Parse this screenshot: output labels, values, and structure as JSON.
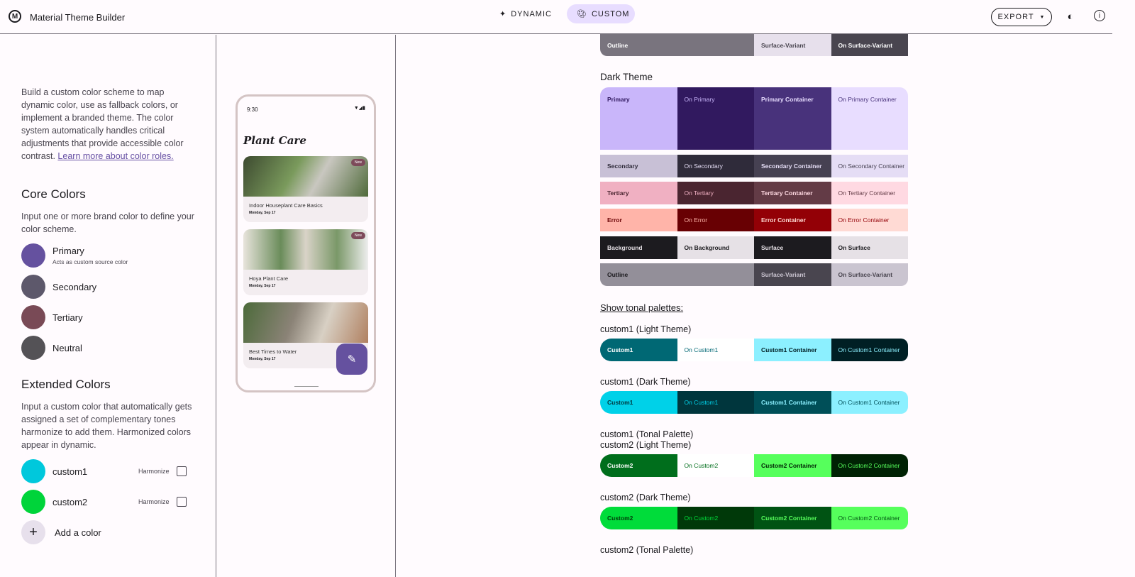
{
  "header": {
    "title": "Material Theme Builder",
    "logo": "M",
    "dynamic": "DYNAMIC",
    "custom": "CUSTOM",
    "export": "EXPORT"
  },
  "left": {
    "intro": "Build a custom color scheme to map dynamic color, use as fallback colors, or implement a branded theme. The color system automatically handles critical adjustments that provide accessible color contrast.",
    "learn_more": "Learn more about color roles.",
    "core_title": "Core Colors",
    "core_desc": "Input one or more brand color to define your color scheme.",
    "core": [
      {
        "label": "Primary",
        "sub": "Acts as custom source color",
        "color": "#65519f"
      },
      {
        "label": "Secondary",
        "color": "#5d586b"
      },
      {
        "label": "Tertiary",
        "color": "#794a56"
      },
      {
        "label": "Neutral",
        "color": "#545256"
      }
    ],
    "ext_title": "Extended Colors",
    "ext_desc": "Input a custom color that automatically gets assigned a set of complementary tones harmonize to add them. Harmonized colors appear in dynamic.",
    "ext": [
      {
        "label": "custom1",
        "color": "#00c8dc",
        "harmonize": "Harmonize",
        "checked": false
      },
      {
        "label": "custom2",
        "color": "#00d43a",
        "harmonize": "Harmonize",
        "checked": false
      }
    ],
    "add": "Add a color"
  },
  "phone": {
    "time": "9:30",
    "title": "Plant Care",
    "cards": [
      {
        "title": "Indoor Houseplant Care Basics",
        "date": "Monday, Sep 17",
        "badge": "New"
      },
      {
        "title": "Hoya Plant Care",
        "date": "Monday, Sep 17",
        "badge": "New"
      },
      {
        "title": "Best Times to Water",
        "date": "Monday, Sep 17"
      }
    ]
  },
  "right": {
    "light_outline_row": [
      {
        "label": "Outline",
        "bg": "#79747e",
        "fg": "#ffffff",
        "span": 2
      },
      {
        "label": "Surface-Variant",
        "bg": "#e7e0ec",
        "fg": "#49454f"
      },
      {
        "label": "On Surface-Variant",
        "bg": "#49454f",
        "fg": "#ffffff"
      }
    ],
    "dark_title": "Dark Theme",
    "dark_rows": [
      [
        {
          "label": "Primary",
          "bg": "#c9b6fa",
          "fg": "#31195f"
        },
        {
          "label": "On Primary",
          "bg": "#31195f",
          "fg": "#c9b6fa"
        },
        {
          "label": "Primary Container",
          "bg": "#48327b",
          "fg": "#e8ddff"
        },
        {
          "label": "On Primary Container",
          "bg": "#e8ddff",
          "fg": "#48327b"
        }
      ],
      [
        {
          "label": "Secondary",
          "bg": "#c8c0d6",
          "fg": "#2f2b3a"
        },
        {
          "label": "On Secondary",
          "bg": "#2f2b3a",
          "fg": "#e5ddf5"
        },
        {
          "label": "Secondary Container",
          "bg": "#464152",
          "fg": "#e5ddf5"
        },
        {
          "label": "On Secondary Container",
          "bg": "#e5ddf5",
          "fg": "#464152"
        }
      ],
      [
        {
          "label": "Tertiary",
          "bg": "#f0b0c2",
          "fg": "#4a2530"
        },
        {
          "label": "On Tertiary",
          "bg": "#4a2530",
          "fg": "#f0b0c2"
        },
        {
          "label": "Tertiary Container",
          "bg": "#633b46",
          "fg": "#ffd9e2"
        },
        {
          "label": "On Tertiary Container",
          "bg": "#ffd9e2",
          "fg": "#633b46"
        }
      ],
      [
        {
          "label": "Error",
          "bg": "#ffb4a9",
          "fg": "#680003"
        },
        {
          "label": "On Error",
          "bg": "#680003",
          "fg": "#ffb4a9"
        },
        {
          "label": "Error Container",
          "bg": "#930006",
          "fg": "#ffdad4"
        },
        {
          "label": "On Error Container",
          "bg": "#ffdad4",
          "fg": "#930006"
        }
      ],
      [
        {
          "label": "Background",
          "bg": "#1c1b1f",
          "fg": "#e6e1e6"
        },
        {
          "label": "On Background",
          "bg": "#e6e1e6",
          "fg": "#1c1b1f"
        },
        {
          "label": "Surface",
          "bg": "#1c1b1f",
          "fg": "#e6e1e6"
        },
        {
          "label": "On Surface",
          "bg": "#e6e1e6",
          "fg": "#1c1b1f"
        }
      ],
      [
        {
          "label": "Outline",
          "bg": "#938f99",
          "fg": "#1c1b1f",
          "span": 2
        },
        {
          "label": "Surface-Variant",
          "bg": "#49454f",
          "fg": "#cac4d0"
        },
        {
          "label": "On Surface-Variant",
          "bg": "#cac4d0",
          "fg": "#49454f"
        }
      ]
    ],
    "show_tonal": "Show tonal palettes:",
    "groups": [
      {
        "label": "custom1 (Light Theme)",
        "cells": [
          {
            "label": "Custom1",
            "bg": "#006874",
            "fg": "#ffffff"
          },
          {
            "label": "On Custom1",
            "bg": "#ffffff",
            "fg": "#006874"
          },
          {
            "label": "Custom1 Container",
            "bg": "#8cf0ff",
            "fg": "#001f24"
          },
          {
            "label": "On Custom1 Container",
            "bg": "#001f24",
            "fg": "#8cf0ff"
          }
        ]
      },
      {
        "label": "custom1 (Dark Theme)",
        "cells": [
          {
            "label": "Custom1",
            "bg": "#00d1e8",
            "fg": "#00363d"
          },
          {
            "label": "On Custom1",
            "bg": "#00363d",
            "fg": "#00d1e8"
          },
          {
            "label": "Custom1 Container",
            "bg": "#004f58",
            "fg": "#8cf0ff"
          },
          {
            "label": "On Custom1 Container",
            "bg": "#8cf0ff",
            "fg": "#004f58"
          }
        ]
      },
      {
        "label": "custom1 (Tonal Palette)"
      },
      {
        "label": "custom2 (Light Theme)",
        "cells": [
          {
            "label": "Custom2",
            "bg": "#006e1c",
            "fg": "#ffffff"
          },
          {
            "label": "On Custom2",
            "bg": "#ffffff",
            "fg": "#006e1c"
          },
          {
            "label": "Custom2 Container",
            "bg": "#56ff5c",
            "fg": "#002204"
          },
          {
            "label": "On Custom2 Container",
            "bg": "#002204",
            "fg": "#56ff5c"
          }
        ]
      },
      {
        "label": "custom2 (Dark Theme)",
        "cells": [
          {
            "label": "Custom2",
            "bg": "#00dc3a",
            "fg": "#003909"
          },
          {
            "label": "On Custom2",
            "bg": "#003909",
            "fg": "#00dc3a"
          },
          {
            "label": "Custom2 Container",
            "bg": "#005313",
            "fg": "#56ff5c"
          },
          {
            "label": "On Custom2 Container",
            "bg": "#56ff5c",
            "fg": "#005313"
          }
        ]
      },
      {
        "label": "custom2 (Tonal Palette)"
      }
    ]
  }
}
